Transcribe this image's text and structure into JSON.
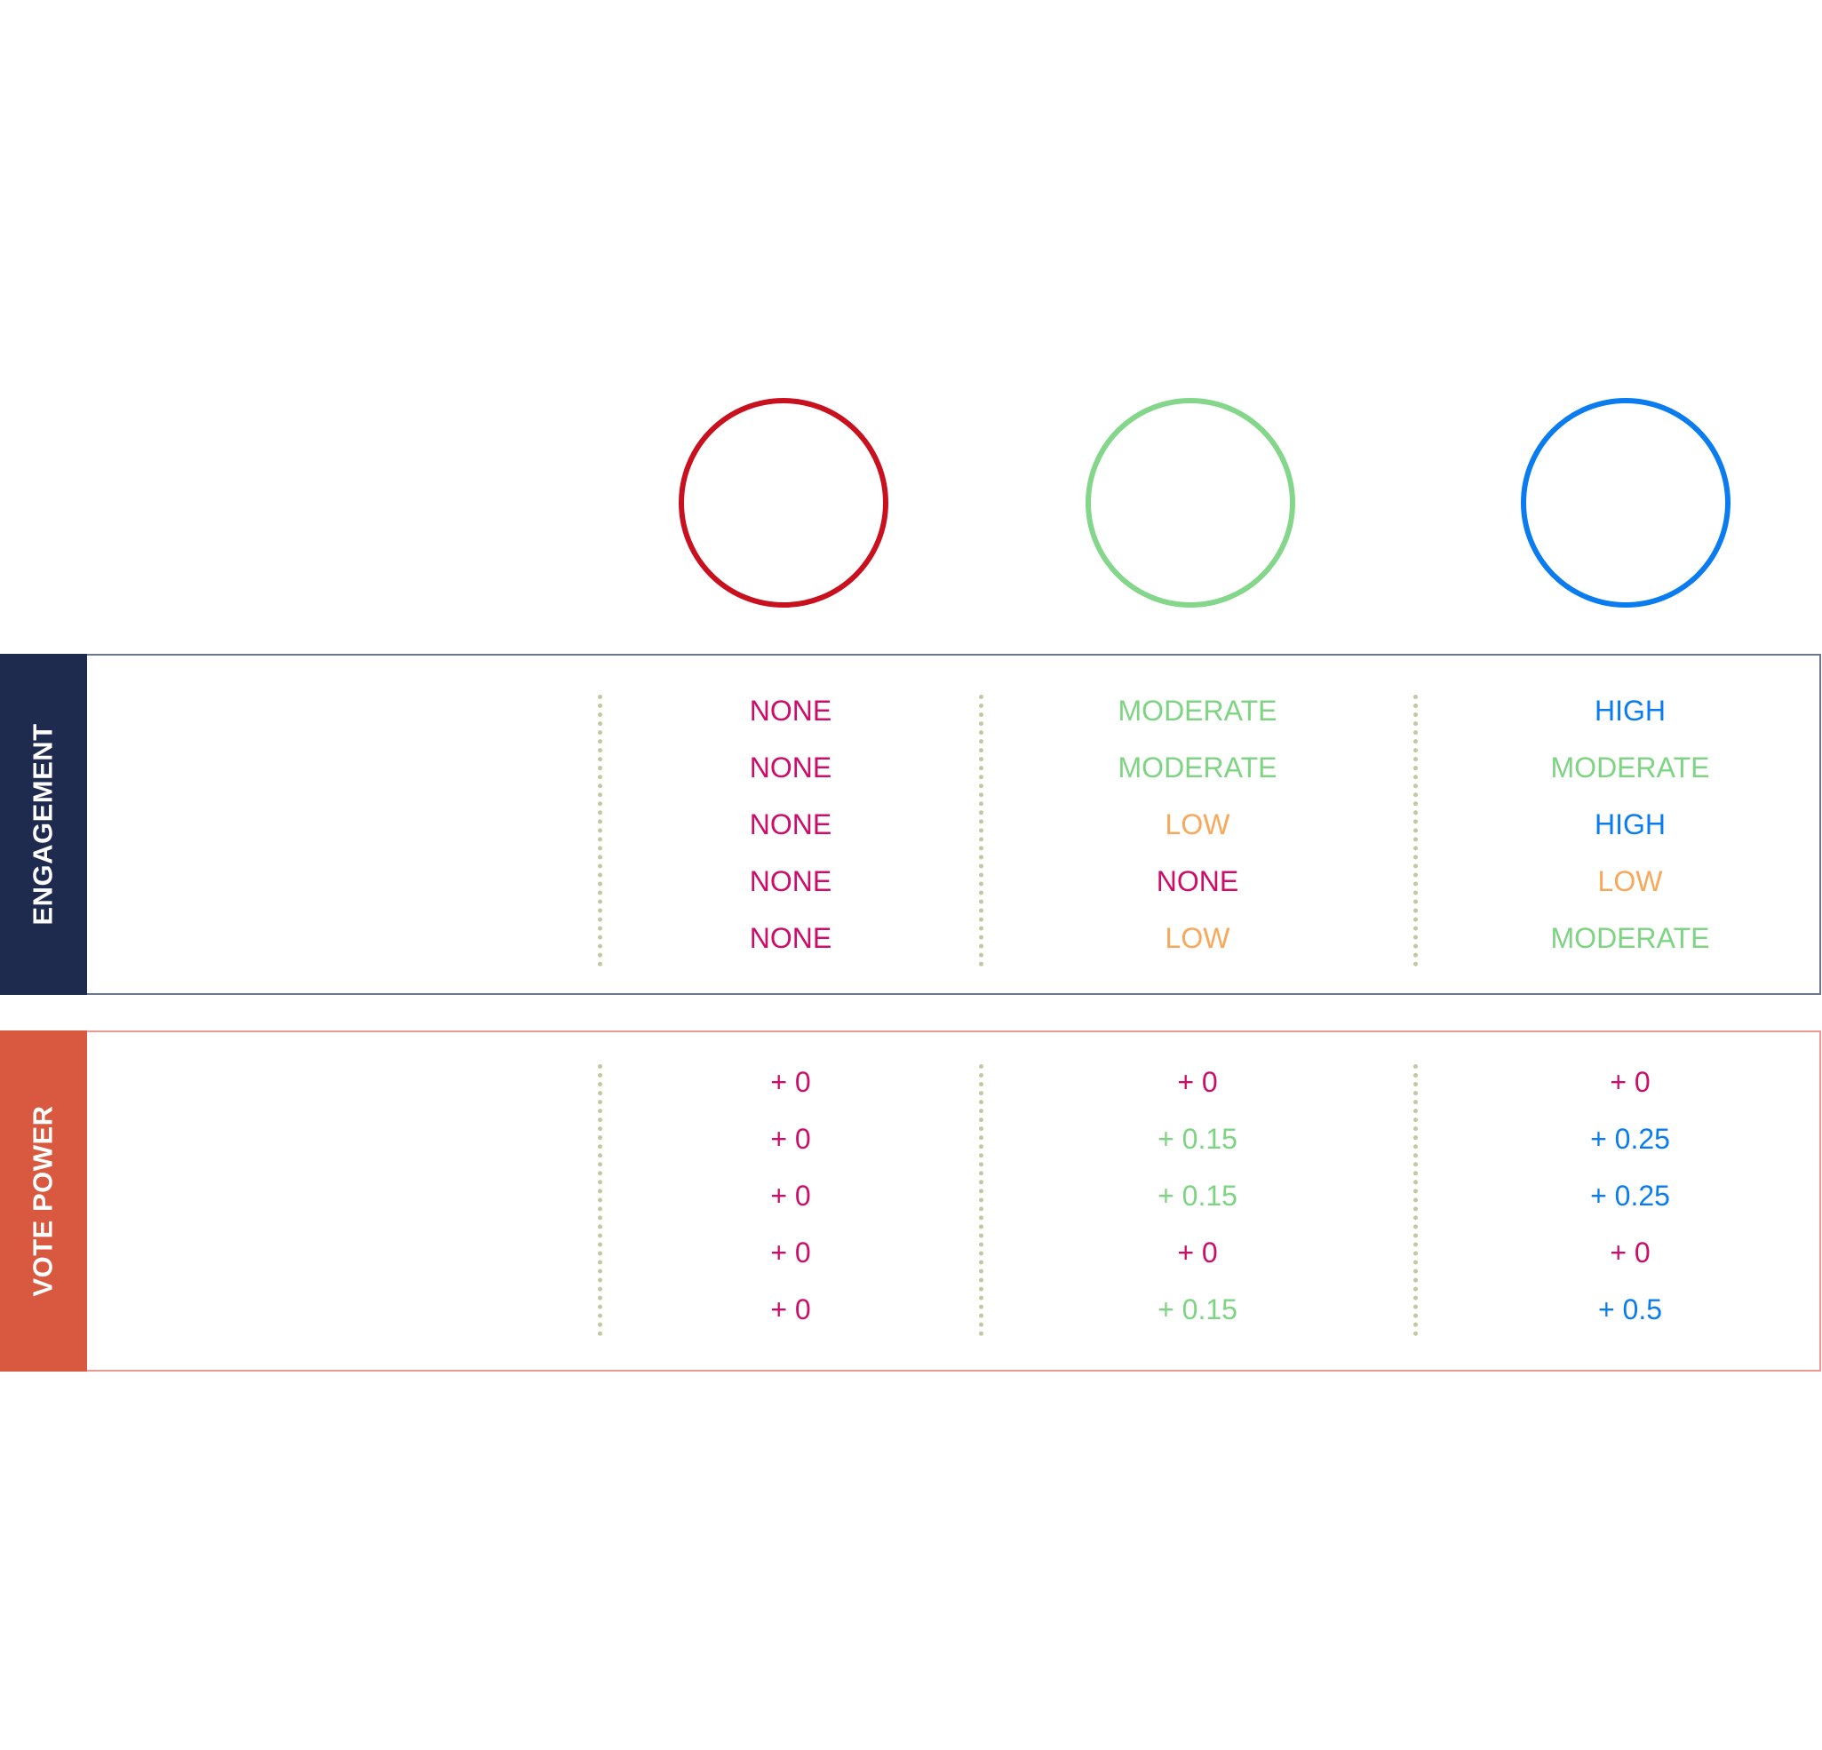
{
  "colors": {
    "circle_red": "#c8101e",
    "circle_green": "#84d68a",
    "circle_blue": "#0a7cf0",
    "none": "#cc0e6a",
    "moderate": "#7ed483",
    "low": "#f7a85a",
    "high": "#0a7cf0",
    "engagement_band": "#1e2b4f",
    "vote_band": "#d95840"
  },
  "circles": [
    {
      "name": "red-circle",
      "color": "#c8101e"
    },
    {
      "name": "green-circle",
      "color": "#84d68a"
    },
    {
      "name": "blue-circle",
      "color": "#0a7cf0"
    }
  ],
  "engagement": {
    "label": "ENGAGEMENT",
    "columns": [
      [
        "NONE",
        "NONE",
        "NONE",
        "NONE",
        "NONE"
      ],
      [
        "MODERATE",
        "MODERATE",
        "LOW",
        "NONE",
        "LOW"
      ],
      [
        "HIGH",
        "MODERATE",
        "HIGH",
        "LOW",
        "MODERATE"
      ]
    ],
    "colors": [
      [
        "none",
        "none",
        "none",
        "none",
        "none"
      ],
      [
        "moderate",
        "moderate",
        "low",
        "none",
        "low"
      ],
      [
        "high",
        "moderate",
        "high",
        "low",
        "moderate"
      ]
    ]
  },
  "vote_power": {
    "label": "VOTE POWER",
    "columns": [
      [
        "+ 0",
        "+ 0",
        "+ 0",
        "+ 0",
        "+ 0"
      ],
      [
        "+ 0",
        "+ 0.15",
        "+ 0.15",
        "+ 0",
        "+ 0.15"
      ],
      [
        "+ 0",
        "+ 0.25",
        "+ 0.25",
        "+ 0",
        "+ 0.5"
      ]
    ],
    "colors": [
      [
        "none",
        "none",
        "none",
        "none",
        "none"
      ],
      [
        "none",
        "moderate",
        "moderate",
        "none",
        "moderate"
      ],
      [
        "none",
        "high",
        "high",
        "none",
        "high"
      ]
    ]
  }
}
